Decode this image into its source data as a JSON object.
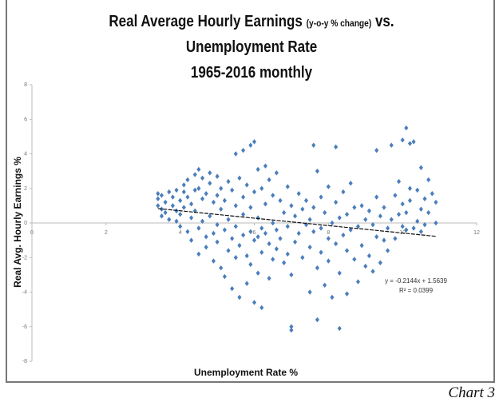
{
  "chart_data": {
    "type": "scatter",
    "title_line1_main": "Real Average Hourly Earnings",
    "title_line1_small": "(y-o-y % change)",
    "title_line1_end": "vs.",
    "title_line2": "Unemployment Rate",
    "title_line3": "1965-2016 monthly",
    "xlabel": "Unemployment Rate %",
    "ylabel": "Real Avg. Hourly Earnings %",
    "xlim": [
      0,
      12
    ],
    "ylim": [
      -8,
      8
    ],
    "xticks": [
      "0",
      "2",
      "4",
      "6",
      "8",
      "10",
      "12"
    ],
    "yticks": [
      "8",
      "6",
      "4",
      "2",
      "0",
      "-2",
      "-4",
      "-6",
      "-8"
    ],
    "grid": false,
    "marker_color": "#4a7ebb",
    "trendline": {
      "slope": -0.2144,
      "intercept": 1.5639,
      "x_range": [
        3.4,
        10.9
      ],
      "equation": "y = -0.2144x + 1.5639",
      "r2": "R² = 0.0399"
    },
    "points": [
      [
        3.4,
        1.7
      ],
      [
        3.4,
        1.4
      ],
      [
        3.4,
        1.0
      ],
      [
        3.5,
        0.8
      ],
      [
        3.5,
        1.6
      ],
      [
        3.5,
        0.4
      ],
      [
        3.6,
        1.2
      ],
      [
        3.6,
        0.6
      ],
      [
        3.7,
        1.8
      ],
      [
        3.7,
        0.2
      ],
      [
        3.8,
        1.0
      ],
      [
        3.8,
        1.5
      ],
      [
        3.9,
        0.7
      ],
      [
        3.9,
        0.1
      ],
      [
        3.9,
        1.9
      ],
      [
        4.0,
        1.3
      ],
      [
        4.0,
        0.5
      ],
      [
        4.0,
        -0.2
      ],
      [
        4.1,
        2.2
      ],
      [
        4.1,
        1.8
      ],
      [
        4.1,
        0.9
      ],
      [
        4.2,
        1.5
      ],
      [
        4.2,
        -0.5
      ],
      [
        4.2,
        2.5
      ],
      [
        4.3,
        1.1
      ],
      [
        4.3,
        0.3
      ],
      [
        4.3,
        -1.0
      ],
      [
        4.4,
        2.8
      ],
      [
        4.4,
        1.9
      ],
      [
        4.4,
        0.7
      ],
      [
        4.5,
        3.1
      ],
      [
        4.5,
        2.0
      ],
      [
        4.5,
        -0.3
      ],
      [
        4.5,
        -1.8
      ],
      [
        4.6,
        1.4
      ],
      [
        4.6,
        0.1
      ],
      [
        4.6,
        2.6
      ],
      [
        4.7,
        1.7
      ],
      [
        4.7,
        -0.8
      ],
      [
        4.7,
        -1.4
      ],
      [
        4.8,
        2.9
      ],
      [
        4.8,
        2.3
      ],
      [
        4.8,
        0.4
      ],
      [
        4.9,
        1.2
      ],
      [
        4.9,
        -0.6
      ],
      [
        4.9,
        -2.2
      ],
      [
        5.0,
        2.7
      ],
      [
        5.0,
        1.6
      ],
      [
        5.0,
        -0.1
      ],
      [
        5.0,
        -1.1
      ],
      [
        5.1,
        2.0
      ],
      [
        5.1,
        0.8
      ],
      [
        5.1,
        -2.6
      ],
      [
        5.2,
        1.3
      ],
      [
        5.2,
        -0.4
      ],
      [
        5.2,
        -3.1
      ],
      [
        5.3,
        2.4
      ],
      [
        5.3,
        0.2
      ],
      [
        5.3,
        -1.6
      ],
      [
        5.4,
        1.9
      ],
      [
        5.4,
        -0.9
      ],
      [
        5.4,
        -3.8
      ],
      [
        5.5,
        4.0
      ],
      [
        5.5,
        1.0
      ],
      [
        5.5,
        -0.2
      ],
      [
        5.5,
        -2.0
      ],
      [
        5.6,
        2.6
      ],
      [
        5.6,
        -1.3
      ],
      [
        5.6,
        -4.3
      ],
      [
        5.7,
        4.2
      ],
      [
        5.7,
        1.5
      ],
      [
        5.7,
        0.5
      ],
      [
        5.7,
        -0.7
      ],
      [
        5.8,
        2.2
      ],
      [
        5.8,
        -1.9
      ],
      [
        5.8,
        -3.5
      ],
      [
        5.9,
        4.5
      ],
      [
        5.9,
        0.9
      ],
      [
        5.9,
        -0.5
      ],
      [
        5.9,
        -2.4
      ],
      [
        6.0,
        4.7
      ],
      [
        6.0,
        1.8
      ],
      [
        6.0,
        -1.0
      ],
      [
        6.0,
        -4.6
      ],
      [
        6.1,
        3.1
      ],
      [
        6.1,
        0.3
      ],
      [
        6.1,
        -0.8
      ],
      [
        6.1,
        -2.9
      ],
      [
        6.2,
        2.0
      ],
      [
        6.2,
        -0.3
      ],
      [
        6.2,
        -1.7
      ],
      [
        6.2,
        -4.9
      ],
      [
        6.3,
        3.3
      ],
      [
        6.3,
        1.1
      ],
      [
        6.3,
        -0.6
      ],
      [
        6.4,
        2.5
      ],
      [
        6.4,
        -1.2
      ],
      [
        6.4,
        -3.2
      ],
      [
        6.5,
        1.6
      ],
      [
        6.5,
        0.0
      ],
      [
        6.5,
        -2.1
      ],
      [
        6.6,
        2.9
      ],
      [
        6.6,
        -0.4
      ],
      [
        6.6,
        -1.5
      ],
      [
        6.7,
        1.3
      ],
      [
        6.7,
        -0.9
      ],
      [
        6.8,
        0.6
      ],
      [
        6.8,
        -2.3
      ],
      [
        6.9,
        2.1
      ],
      [
        6.9,
        -0.2
      ],
      [
        6.9,
        -1.8
      ],
      [
        7.0,
        1.0
      ],
      [
        7.0,
        -3.0
      ],
      [
        7.0,
        -6.0
      ],
      [
        7.0,
        -6.2
      ],
      [
        7.1,
        0.4
      ],
      [
        7.1,
        -1.1
      ],
      [
        7.2,
        1.7
      ],
      [
        7.2,
        -0.6
      ],
      [
        7.3,
        0.8
      ],
      [
        7.3,
        -2.0
      ],
      [
        7.4,
        -0.1
      ],
      [
        7.4,
        1.3
      ],
      [
        7.5,
        0.2
      ],
      [
        7.5,
        -1.4
      ],
      [
        7.5,
        -4.0
      ],
      [
        7.6,
        4.5
      ],
      [
        7.6,
        0.9
      ],
      [
        7.6,
        -0.5
      ],
      [
        7.7,
        3.0
      ],
      [
        7.7,
        -2.6
      ],
      [
        7.7,
        -5.6
      ],
      [
        7.8,
        1.5
      ],
      [
        7.8,
        -0.3
      ],
      [
        7.8,
        -1.7
      ],
      [
        7.9,
        0.6
      ],
      [
        7.9,
        -3.6
      ],
      [
        8.0,
        2.1
      ],
      [
        8.0,
        -0.9
      ],
      [
        8.0,
        -2.2
      ],
      [
        8.1,
        0.0
      ],
      [
        8.1,
        -4.3
      ],
      [
        8.2,
        4.4
      ],
      [
        8.2,
        1.2
      ],
      [
        8.2,
        -1.2
      ],
      [
        8.3,
        0.3
      ],
      [
        8.3,
        -2.9
      ],
      [
        8.3,
        -6.1
      ],
      [
        8.4,
        1.8
      ],
      [
        8.4,
        -0.7
      ],
      [
        8.5,
        0.5
      ],
      [
        8.5,
        -1.6
      ],
      [
        8.5,
        -4.1
      ],
      [
        8.6,
        2.3
      ],
      [
        8.6,
        -0.4
      ],
      [
        8.7,
        0.9
      ],
      [
        8.7,
        -2.1
      ],
      [
        8.8,
        -0.2
      ],
      [
        8.8,
        -3.4
      ],
      [
        8.9,
        1.0
      ],
      [
        8.9,
        -1.3
      ],
      [
        9.0,
        0.2
      ],
      [
        9.0,
        -2.5
      ],
      [
        9.1,
        0.7
      ],
      [
        9.1,
        -1.9
      ],
      [
        9.2,
        -0.1
      ],
      [
        9.2,
        -2.8
      ],
      [
        9.3,
        1.5
      ],
      [
        9.3,
        -0.8
      ],
      [
        9.3,
        4.2
      ],
      [
        9.4,
        0.4
      ],
      [
        9.4,
        -2.3
      ],
      [
        9.5,
        -1.0
      ],
      [
        9.5,
        0.9
      ],
      [
        9.6,
        -0.3
      ],
      [
        9.6,
        -1.6
      ],
      [
        9.7,
        4.5
      ],
      [
        9.7,
        0.2
      ],
      [
        9.8,
        1.6
      ],
      [
        9.8,
        -0.9
      ],
      [
        9.9,
        2.4
      ],
      [
        9.9,
        0.5
      ],
      [
        10.0,
        4.8
      ],
      [
        10.0,
        -0.2
      ],
      [
        10.0,
        1.1
      ],
      [
        10.1,
        5.5
      ],
      [
        10.1,
        0.6
      ],
      [
        10.1,
        -0.4
      ],
      [
        10.2,
        4.6
      ],
      [
        10.2,
        2.0
      ],
      [
        10.2,
        1.3
      ],
      [
        10.3,
        4.7
      ],
      [
        10.3,
        -0.3
      ],
      [
        10.4,
        0.1
      ],
      [
        10.4,
        1.9
      ],
      [
        10.5,
        3.2
      ],
      [
        10.5,
        -0.5
      ],
      [
        10.5,
        0.8
      ],
      [
        10.6,
        1.4
      ],
      [
        10.6,
        -0.1
      ],
      [
        10.7,
        2.5
      ],
      [
        10.7,
        0.6
      ],
      [
        10.8,
        1.7
      ],
      [
        10.9,
        0.0
      ],
      [
        10.9,
        1.2
      ]
    ]
  },
  "caption": "Chart 3"
}
